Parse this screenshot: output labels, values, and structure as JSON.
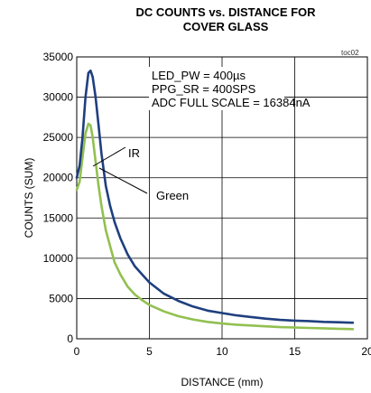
{
  "chart_data": {
    "type": "line",
    "title_line1": "DC COUNTS vs. DISTANCE FOR",
    "title_line2": "COVER GLASS",
    "figure_tag": "toc02",
    "xlabel": "DISTANCE (mm)",
    "ylabel": "COUNTS (SUM)",
    "xlim": [
      0,
      20
    ],
    "ylim": [
      0,
      35000
    ],
    "xticks": [
      0,
      5,
      10,
      15,
      20
    ],
    "xtick_labels": [
      "0",
      "5",
      "10",
      "15",
      "20"
    ],
    "yticks": [
      0,
      5000,
      10000,
      15000,
      20000,
      25000,
      30000,
      35000
    ],
    "ytick_labels": [
      "0",
      "5000",
      "10000",
      "15000",
      "20000",
      "25000",
      "30000",
      "35000"
    ],
    "grid": true,
    "annotations": [
      "LED_PW = 400µs",
      "PPG_SR = 400SPS",
      "ADC FULL SCALE = 16384nA"
    ],
    "series": [
      {
        "name": "IR",
        "color": "#1f3f7f",
        "x": [
          0.0,
          0.2,
          0.4,
          0.6,
          0.8,
          0.95,
          1.1,
          1.3,
          1.5,
          1.7,
          2.0,
          2.3,
          2.6,
          3.0,
          3.5,
          4.0,
          4.5,
          5.0,
          6.0,
          7.0,
          8.0,
          9.0,
          10.0,
          11.0,
          12.0,
          13.0,
          14.0,
          15.0,
          16.0,
          17.0,
          18.0,
          19.0
        ],
        "y": [
          20000,
          21500,
          25000,
          30000,
          33000,
          33300,
          32500,
          30000,
          26500,
          23000,
          19000,
          16500,
          14500,
          12500,
          10500,
          9000,
          8000,
          7000,
          5600,
          4700,
          4000,
          3500,
          3200,
          2900,
          2700,
          2500,
          2350,
          2250,
          2200,
          2100,
          2050,
          2000
        ]
      },
      {
        "name": "Green",
        "color": "#92c050",
        "x": [
          0.0,
          0.2,
          0.4,
          0.6,
          0.8,
          0.95,
          1.1,
          1.3,
          1.5,
          1.7,
          2.0,
          2.3,
          2.6,
          3.0,
          3.5,
          4.0,
          4.5,
          5.0,
          6.0,
          7.0,
          8.0,
          9.0,
          10.0,
          11.0,
          12.0,
          13.0,
          14.0,
          15.0,
          16.0,
          17.0,
          18.0,
          19.0
        ],
        "y": [
          18500,
          19500,
          22500,
          25500,
          26700,
          26500,
          25000,
          22000,
          19000,
          16500,
          13500,
          11500,
          9500,
          8000,
          6500,
          5500,
          4800,
          4200,
          3400,
          2800,
          2400,
          2100,
          1900,
          1750,
          1650,
          1550,
          1450,
          1400,
          1350,
          1300,
          1250,
          1200
        ]
      }
    ]
  }
}
